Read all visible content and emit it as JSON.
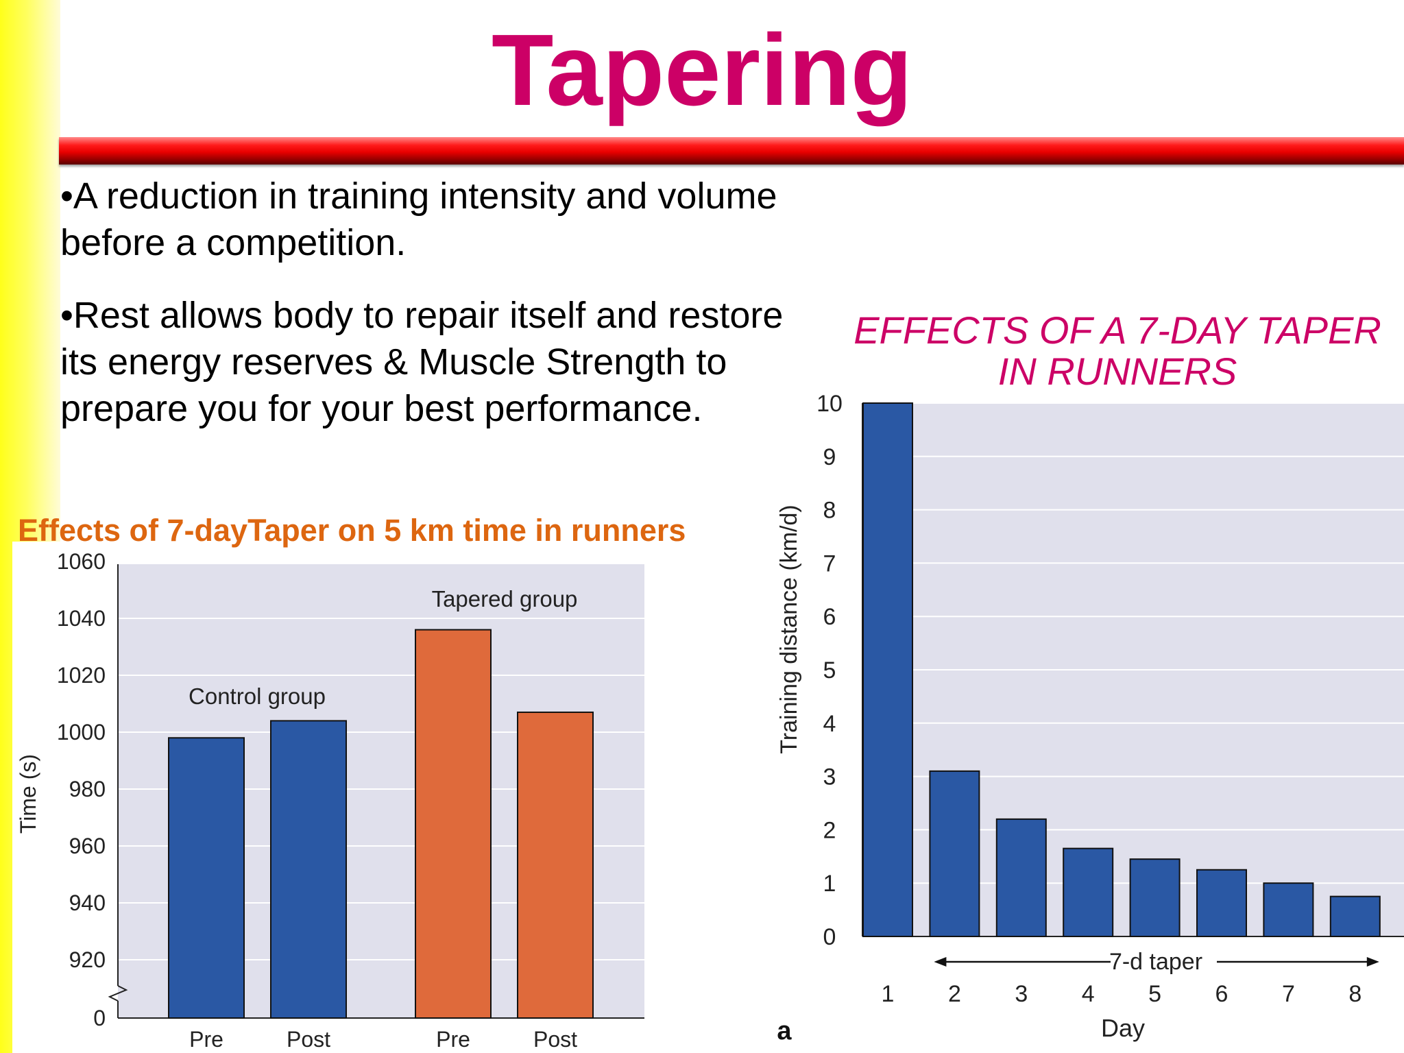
{
  "slide": {
    "title": "Tapering",
    "bullets": [
      {
        "line1": "•A reduction in training intensity and volume",
        "line2": "before a competition."
      },
      {
        "line1": "•Rest allows body to repair itself and restore",
        "line2": "its energy reserves & Muscle Strength to",
        "line3": "prepare you for your best performance."
      }
    ]
  },
  "colors": {
    "title": "#cc0066",
    "left_chart_title": "#dd6610",
    "control_bar": "#2a58a4",
    "tapered_bar": "#df6a3b",
    "plot_bg": "#e0e0ec"
  },
  "chart_data": [
    {
      "type": "bar",
      "title": "Effects of 7-dayTaper on 5 km time in runners",
      "ylabel": "Time (s)",
      "ylim": [
        920,
        1060
      ],
      "yticks": [
        "1060",
        "1040",
        "1020",
        "1000",
        "980",
        "960",
        "940",
        "920",
        "0"
      ],
      "axis_break": true,
      "groups": [
        {
          "label": "Control group",
          "categories": [
            "Pre",
            "Post"
          ],
          "values": [
            998,
            1004
          ],
          "color": "#2a58a4"
        },
        {
          "label": "Tapered group",
          "categories": [
            "Pre",
            "Post"
          ],
          "values": [
            1036,
            1007
          ],
          "color": "#df6a3b"
        }
      ],
      "grid": true
    },
    {
      "type": "bar",
      "title": "EFFECTS OF A 7-DAY TAPER IN RUNNERS",
      "xlabel": "Day",
      "ylabel": "Training distance (km/d)",
      "ylim": [
        0,
        10
      ],
      "categories": [
        "1",
        "2",
        "3",
        "4",
        "5",
        "6",
        "7",
        "8"
      ],
      "values": [
        10.0,
        3.1,
        2.2,
        1.65,
        1.45,
        1.25,
        1.0,
        0.75
      ],
      "annotation": "7-d taper",
      "panel_label": "a",
      "color": "#2a58a4",
      "grid": true
    }
  ]
}
